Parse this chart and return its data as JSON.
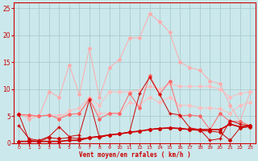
{
  "xlabel": "Vent moyen/en rafales ( km/h )",
  "background_color": "#cbe8ec",
  "grid_color": "#aacccc",
  "x": [
    0,
    1,
    2,
    3,
    4,
    5,
    6,
    7,
    8,
    9,
    10,
    11,
    12,
    13,
    14,
    15,
    16,
    17,
    18,
    19,
    20,
    21,
    22,
    23
  ],
  "line_rafales": [
    5.5,
    4.5,
    5.0,
    9.5,
    8.5,
    14.5,
    9.0,
    17.5,
    8.5,
    14.0,
    15.5,
    19.5,
    19.5,
    24.0,
    22.5,
    20.5,
    15.0,
    14.0,
    13.5,
    11.5,
    11.0,
    7.0,
    4.0,
    9.5
  ],
  "line_mid2": [
    5.3,
    5.2,
    5.0,
    5.2,
    4.5,
    6.0,
    6.5,
    8.5,
    7.0,
    9.5,
    9.5,
    9.5,
    9.8,
    10.5,
    10.0,
    11.0,
    10.5,
    10.5,
    10.5,
    10.5,
    10.0,
    8.5,
    9.2,
    9.5
  ],
  "line_mid1": [
    5.3,
    5.0,
    5.0,
    5.2,
    5.2,
    5.3,
    5.5,
    8.0,
    5.5,
    5.5,
    5.5,
    7.5,
    7.0,
    8.5,
    7.5,
    8.5,
    7.0,
    7.0,
    6.5,
    6.5,
    6.3,
    5.5,
    7.0,
    7.5
  ],
  "line_var": [
    5.3,
    5.2,
    5.0,
    5.2,
    4.5,
    5.3,
    5.5,
    8.2,
    4.5,
    5.5,
    5.5,
    9.2,
    6.5,
    12.5,
    9.0,
    11.5,
    5.0,
    5.2,
    5.0,
    2.5,
    5.5,
    4.0,
    4.0,
    3.2
  ],
  "line_moyen": [
    3.2,
    0.8,
    0.5,
    1.2,
    3.0,
    1.2,
    1.5,
    8.0,
    1.0,
    1.5,
    1.7,
    2.0,
    9.2,
    12.2,
    9.0,
    5.5,
    5.2,
    2.8,
    2.5,
    0.5,
    0.8,
    4.2,
    3.5,
    3.2
  ],
  "line_low": [
    5.3,
    0.5,
    0.3,
    1.0,
    0.8,
    1.0,
    0.8,
    1.0,
    1.2,
    1.5,
    1.7,
    2.0,
    2.2,
    2.5,
    2.7,
    2.8,
    2.7,
    2.5,
    2.3,
    2.2,
    2.0,
    0.5,
    2.8,
    3.0
  ],
  "line_base": [
    0.3,
    0.3,
    0.3,
    0.3,
    0.3,
    0.5,
    0.5,
    1.0,
    1.2,
    1.5,
    1.7,
    2.0,
    2.2,
    2.5,
    2.7,
    2.8,
    2.7,
    2.5,
    2.5,
    2.5,
    2.5,
    3.5,
    3.0,
    3.2
  ],
  "ylim": [
    0,
    26
  ],
  "yticks": [
    0,
    5,
    10,
    15,
    20,
    25
  ],
  "color_dark": "#cc0000",
  "color_light": "#ffaaaa",
  "color_mid": "#ff6666",
  "color_midlight": "#ffbbbb",
  "label_color": "#cc0000"
}
